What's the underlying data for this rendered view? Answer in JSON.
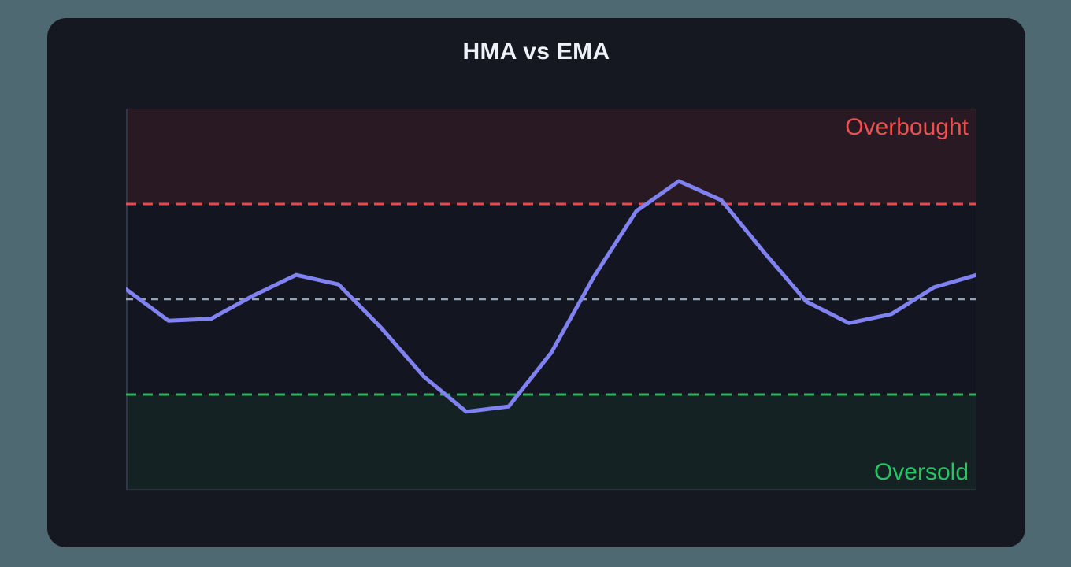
{
  "window": {
    "background_color": "#4e6972",
    "card_color": "#161821"
  },
  "header": {
    "title": "HMA vs EMA",
    "title_color": "#eef1f6"
  },
  "chart_data": {
    "type": "line",
    "title": "HMA vs EMA",
    "xlabel": "",
    "ylabel": "",
    "x": [
      0,
      1,
      2,
      3,
      4,
      5,
      6,
      7,
      8,
      9,
      10,
      11,
      12,
      13,
      14,
      15,
      16,
      17,
      18,
      19,
      20
    ],
    "series": [
      {
        "name": "hma-line",
        "color": "#7f82f0",
        "stroke_width": 5,
        "values": [
          52.1,
          45.5,
          45.9,
          50.8,
          55.1,
          53.1,
          44.0,
          33.8,
          26.4,
          27.5,
          38.8,
          54.7,
          68.5,
          74.8,
          70.8,
          59.9,
          49.5,
          45.0,
          46.9,
          52.5,
          55.1
        ]
      }
    ],
    "ylim": [
      10,
      90
    ],
    "grid": false,
    "legend": "none",
    "plot_background": "#131520",
    "reference_lines": [
      {
        "name": "overbought",
        "value": 70,
        "color": "#e8494e",
        "style": "dashed"
      },
      {
        "name": "midline",
        "value": 50,
        "color": "#94a3b8",
        "style": "dashed"
      },
      {
        "name": "oversold",
        "value": 30,
        "color": "#2bb35e",
        "style": "dashed"
      }
    ],
    "zones": [
      {
        "name": "overbought-zone",
        "from": 70,
        "to": 90,
        "color": "rgba(239,68,68,0.10)"
      },
      {
        "name": "oversold-zone",
        "from": 10,
        "to": 30,
        "color": "rgba(34,197,94,0.08)"
      }
    ],
    "annotations": [
      {
        "text": "Overbought",
        "color": "#ef4f4f",
        "position": "top-right"
      },
      {
        "text": "Oversold",
        "color": "#27c364",
        "position": "bottom-right"
      }
    ]
  }
}
